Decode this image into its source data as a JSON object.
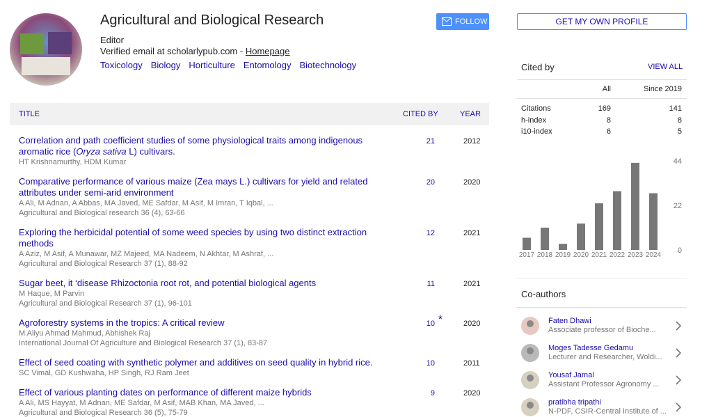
{
  "profile": {
    "name": "Agricultural and Biological Research",
    "affiliation": "Editor",
    "email": "Verified email at scholarlypub.com",
    "separator": " - ",
    "homepage": "Homepage",
    "interests": [
      "Toxicology",
      "Biology",
      "Horticulture",
      "Entomology",
      "Biotechnology"
    ],
    "follow": "FOLLOW",
    "get_profile": "GET MY OWN PROFILE"
  },
  "articles": {
    "headers": [
      "TITLE",
      "CITED BY",
      "YEAR"
    ],
    "rows": [
      {
        "title": [
          "Correlation and path coefficient studies of some physiological traits among indigenous aromatic rice (",
          "Oryza sativa",
          " L) cultivars."
        ],
        "authors": "HT Krishnamurthy, HDM Kumar",
        "cited_by": 21,
        "year": 2012
      },
      {
        "title": [
          "Comparative performance of various maize (Zea mays L.) cultivars for yield and related attributes under semi-arid environment"
        ],
        "authors": "A Ali, M Adnan, A Abbas, MA Javed, ME Safdar, M Asif, M Imran, T Iqbal, ...",
        "venue": "Agricultural and Biological research 36 (4), 63-66",
        "cited_by": 20,
        "year": 2020
      },
      {
        "title": [
          "Exploring the herbicidal potential of some weed species by using two distinct extraction methods"
        ],
        "authors": "A Aziz, M Asif, A Munawar, MZ Majeed, MA Nadeem, N Akhtar, M Ashraf, ...",
        "venue": "Agricultural and Biological Research 37 (1), 88-92",
        "cited_by": 12,
        "year": 2021
      },
      {
        "title": [
          "Sugar beet, it ‘disease Rhizoctonia root rot, and potential biological agents"
        ],
        "authors": "M Haque, M Parvin",
        "venue": "Agricultural and Biological Research 37 (1), 96-101",
        "cited_by": 11,
        "year": 2021
      },
      {
        "title": [
          "Agroforestry systems in the tropics: A critical review"
        ],
        "authors": "M Aliyu Ahmad Mahmud, Abhishek Raj",
        "venue": "International Journal Of Agriculture and Biological Research 37 (1), 83-87",
        "cited_by": 10,
        "cited_by_mark": "*",
        "year": 2020
      },
      {
        "title": [
          "Effect of seed coating with synthetic polymer and additives on seed quality in hybrid rice."
        ],
        "authors": "SC Vimal, GD Kushwaha, HP Singh, RJ Ram Jeet",
        "cited_by": 10,
        "year": 2011
      },
      {
        "title": [
          "Effect of various planting dates on performance of different maize hybrids"
        ],
        "authors": "A Ali, MS Hayyat, M Adnan, ME Safdar, M Asif, MAB Khan, MA Javed, ...",
        "venue": "Agricultural and Biological Research 36 (5), 75-79",
        "cited_by": 9,
        "year": 2020
      }
    ]
  },
  "cited_by": {
    "heading": "Cited by",
    "view_all": "VIEW ALL",
    "columns": [
      "All",
      "Since 2019"
    ],
    "rows": [
      [
        "Citations",
        169,
        141
      ],
      [
        "h-index",
        8,
        8
      ],
      [
        "i10-index",
        6,
        5
      ]
    ]
  },
  "chart_data": {
    "type": "bar",
    "categories": [
      "2017",
      "2018",
      "2019",
      "2020",
      "2021",
      "2022",
      "2023",
      "2024"
    ],
    "values": [
      6,
      11,
      3,
      13,
      23,
      29,
      43,
      28
    ],
    "color": "#777777",
    "ylim": [
      0,
      44
    ],
    "yticks": [
      0,
      22,
      44
    ]
  },
  "coauthors": {
    "heading": "Co-authors",
    "items": [
      {
        "name": "Faten Dhawi",
        "affiliation": "Associate professor of Bioche..."
      },
      {
        "name": "Moges Tadesse Gedamu",
        "affiliation": "Lecturer and Researcher, Woldi..."
      },
      {
        "name": "Yousaf Jamal",
        "affiliation": "Assistant Professor Agronomy ..."
      },
      {
        "name": "pratibha tripathi",
        "affiliation": "N-PDF, CSIR-Central Institute of ..."
      }
    ]
  }
}
